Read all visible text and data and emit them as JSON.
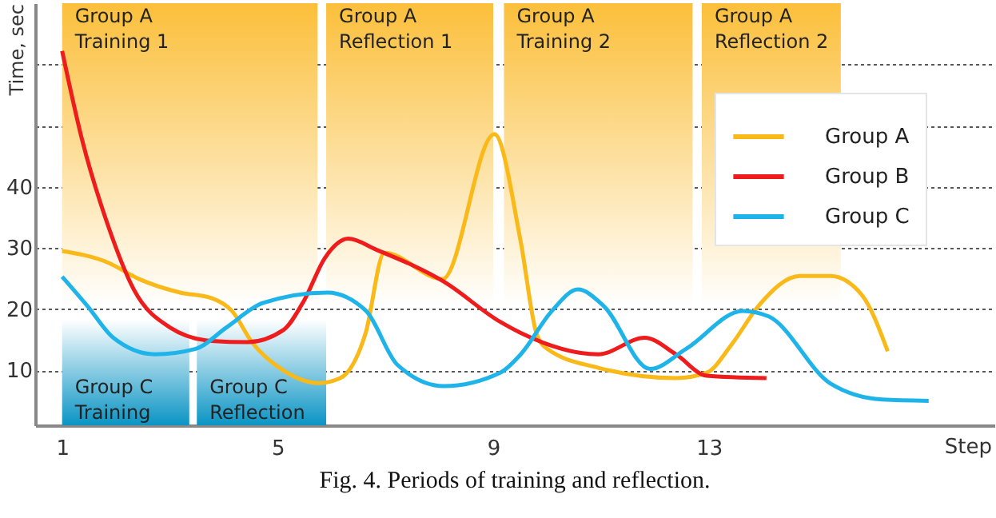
{
  "chart_data": {
    "type": "line",
    "xlabel": "Step",
    "ylabel": "Time, sec",
    "xlim": [
      0.5,
      18.3
    ],
    "ylim": [
      1,
      70
    ],
    "xticks": [
      1,
      5,
      9,
      13
    ],
    "yticks": [
      10,
      20,
      30,
      40,
      {
        "value": 50,
        "label": null
      },
      {
        "value": 60,
        "label": null
      }
    ],
    "grid": "y",
    "legend": "top right",
    "line_style": "solid",
    "marker": "none",
    "series": [
      {
        "name": "Group A",
        "color": "#f9b918",
        "x": [
          1,
          1.85,
          2.43,
          3.19,
          3.77,
          4.15,
          4.53,
          5.1,
          5.77,
          6.16,
          6.63,
          6.98,
          8.06,
          9.02,
          9.51,
          9.8,
          10.0,
          10.95,
          12.39,
          12.96,
          13.44,
          13.92,
          14.69,
          15.26,
          15.84,
          16.32
        ],
        "values": [
          29.5,
          27.6,
          24.9,
          22.7,
          21.8,
          19.7,
          14.5,
          10.0,
          7.9,
          8.7,
          16.0,
          29.2,
          24.9,
          48.6,
          31.0,
          16.1,
          13.5,
          10.4,
          8.7,
          9.6,
          14.4,
          20.5,
          25.4,
          25.4,
          22.3,
          13.1
        ]
      },
      {
        "name": "Group B",
        "color": "#ee1c1c",
        "x": [
          1,
          1.37,
          1.85,
          2.33,
          3.0,
          3.77,
          4.44,
          5.11,
          5.49,
          5.88,
          6.31,
          6.83,
          8.08,
          9.13,
          9.51,
          10.95,
          11.81,
          12.39,
          12.96,
          14.07
        ],
        "values": [
          62.2,
          47.7,
          33.7,
          23.2,
          17.0,
          14.8,
          14.6,
          16.6,
          21.4,
          28.4,
          31.5,
          29.7,
          24.5,
          17.9,
          16.1,
          12.6,
          15.3,
          12.6,
          9.1,
          8.7
        ]
      },
      {
        "name": "Group C",
        "color": "#1eb4ea",
        "x": [
          1,
          1.47,
          1.95,
          2.72,
          3.48,
          4.05,
          4.73,
          5.92,
          6.64,
          7.22,
          8.08,
          9.13,
          9.51,
          10.09,
          10.57,
          11.05,
          11.91,
          12.58,
          13.63,
          14.11,
          15.26,
          16.22,
          17.08
        ],
        "values": [
          25.3,
          20.5,
          15.3,
          12.6,
          13.5,
          17.0,
          21.0,
          22.7,
          19.7,
          10.9,
          7.4,
          9.6,
          12.6,
          19.7,
          23.2,
          20.5,
          10.2,
          13.5,
          19.7,
          18.8,
          7.8,
          5.2,
          5.0
        ]
      }
    ],
    "bands": [
      {
        "axis": "x",
        "from": 1,
        "to": 5.74,
        "label": "Group A\nTraining 1",
        "color": "#fbbf3a"
      },
      {
        "axis": "x",
        "from": 5.9,
        "to": 9.0,
        "label": "Group A\nReflection 1",
        "color": "#fbbf3a"
      },
      {
        "axis": "x",
        "from": 9.2,
        "to": 12.7,
        "label": "Group A\nTraining 2",
        "color": "#fbbf3a"
      },
      {
        "axis": "x",
        "from": 12.87,
        "to": 15.45,
        "label": "Group A\nReflection 2",
        "color": "#fbbf3a"
      },
      {
        "axis": "x",
        "from": 1,
        "to": 3.36,
        "label": "Group C\nTraining",
        "color": "#0a94c4"
      },
      {
        "axis": "x",
        "from": 3.5,
        "to": 5.9,
        "label": "Group C\nReflection",
        "color": "#0a94c4"
      }
    ],
    "annotations": [
      "Fig. 4. Periods of training and reflection."
    ]
  }
}
